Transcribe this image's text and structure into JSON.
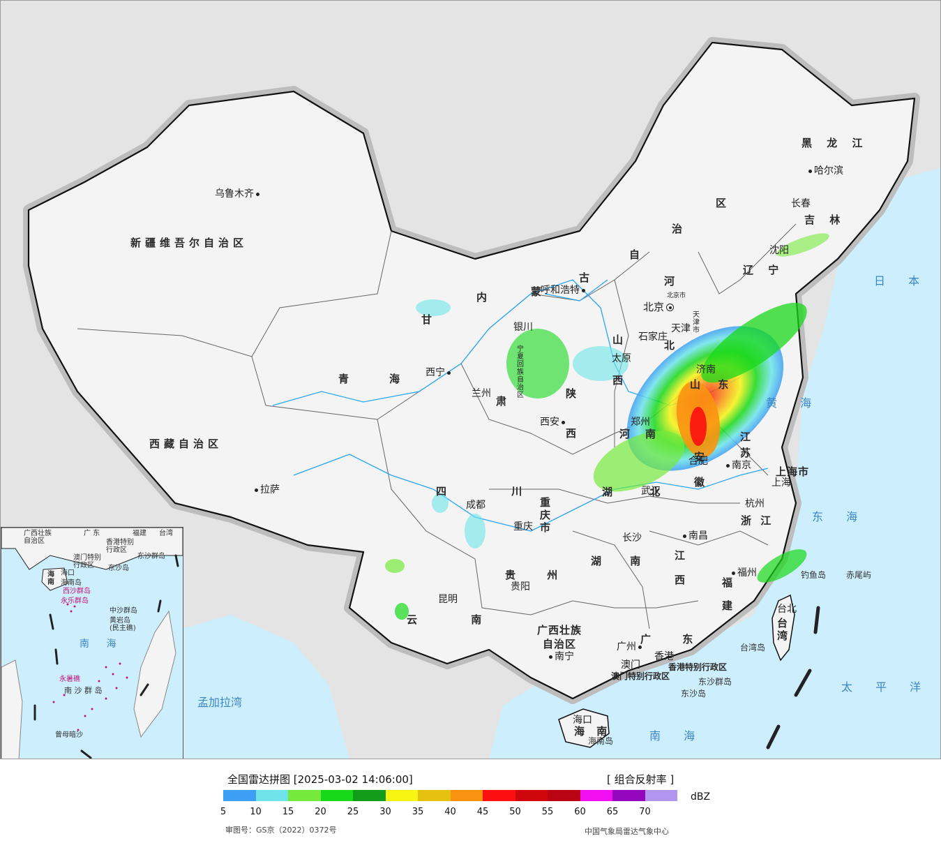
{
  "map": {
    "seas": {
      "sea_of_japan": "日 本 海",
      "yellow_sea": "黄 海",
      "east_sea": "东 海",
      "pacific": "太 平 洋",
      "south_sea": "南 海",
      "bay_of_bengal": "孟加拉湾"
    },
    "regions": {
      "xinjiang": "新疆维吾尔自治区",
      "tibet": "西藏自治区",
      "qinghai_1": "青",
      "qinghai_2": "海",
      "neimeng_nei": "内",
      "neimeng_meng": "蒙",
      "neimeng_gu": "古",
      "zizhi_zi": "自",
      "zizhi_zhi": "治",
      "zizhi_qu": "区",
      "heilongjiang": "黑 龙 江",
      "jilin": "吉 林",
      "liaoning": "辽 宁",
      "hebei_he": "河",
      "hebei_bei": "北",
      "shanxi_shan": "山",
      "shanxi_xi": "西",
      "shaanxi_shan": "陕",
      "shaanxi_xi": "西",
      "ningxia": "宁夏回族自治区",
      "gansu": "甘",
      "gansu_2": "肃",
      "shandong": "山 东",
      "henan_he": "河",
      "henan_nan": "南",
      "jiangsu": "江 苏",
      "anhui": "安 徽",
      "shanghai": "上海市",
      "zhejiang": "浙 江",
      "hubei": "湖 北",
      "sichuan": "四 川",
      "chongqing": "重庆市",
      "hunan": "湖 南",
      "jiangxi": "江 西",
      "fujian": "福 建",
      "guizhou": "贵 州",
      "yunnan": "云 南",
      "guangxi": "广西壮族 自治区",
      "guangdong": "广 东",
      "hainan": "海 南",
      "taiwan": "台湾",
      "hk_sar": "香港特别行政区",
      "macao_sar": "澳门特别行政区",
      "tianjin": "天津市",
      "beijing_city": "北京市"
    },
    "cities": {
      "urumqi": "乌鲁木齐",
      "lhasa": "拉萨",
      "xining": "西宁",
      "lanzhou": "兰州",
      "yinchuan": "银川",
      "hohhot": "呼和浩特",
      "beijing": "北京",
      "tianjin": "天津",
      "shijiazhuang": "石家庄",
      "taiyuan": "太原",
      "jinan": "济南",
      "zhengzhou": "郑州",
      "xian": "西安",
      "hefei": "合肥",
      "nanjing": "南京",
      "shanghai": "上海",
      "hangzhou": "杭州",
      "wuhan": "武汉",
      "chengdu": "成都",
      "chongqing": "重庆",
      "changsha": "长沙",
      "nanchang": "南昌",
      "fuzhou": "福州",
      "guiyang": "贵阳",
      "kunming": "昆明",
      "nanning": "南宁",
      "guangzhou": "广州",
      "hongkong": "香港",
      "macau": "澳门",
      "haikou": "海口",
      "taipei": "台北",
      "harbin": "哈尔滨",
      "changchun": "长春",
      "shenyang": "沈阳"
    },
    "islands": {
      "diaoyu": "钓鱼岛",
      "chiwei": "赤尾屿",
      "taiwan_island": "台湾岛",
      "dongsha_islands": "东沙群岛",
      "dongsha_island": "东沙岛",
      "hainan_island": "海南岛"
    }
  },
  "inset": {
    "labels": {
      "guangxi": "广西壮族 自治区",
      "guangdong": "广 东",
      "fujian": "福建",
      "taiwan": "台湾",
      "hk": "香港特别 行政区",
      "macao": "澳门特别 行政区",
      "dongsha": "东沙群岛",
      "dongsha_dao": "东沙岛",
      "hainan": "海 南",
      "haikou": "海口",
      "hainan_island": "海南岛",
      "xisha": "西沙群岛",
      "yongle": "永乐群岛",
      "zhongsha": "中沙群岛",
      "huangyan": "黄岩岛 (民主礁)",
      "south_sea": "南 海",
      "yongshu": "永暑礁",
      "nansha": "南 沙 群 岛",
      "zengmu": "曾母暗沙"
    }
  },
  "legend": {
    "title": "全国雷达拼图 [2025-03-02 14:06:00]",
    "product": "[ 组合反射率 ]",
    "unit": "dBZ",
    "ticks": [
      "5",
      "10",
      "15",
      "20",
      "25",
      "30",
      "35",
      "40",
      "45",
      "50",
      "55",
      "60",
      "65",
      "70"
    ],
    "colors": [
      "#3d9ff3",
      "#6ee4ea",
      "#76ea3c",
      "#18d81a",
      "#119d19",
      "#f6f413",
      "#e4c20f",
      "#fa9311",
      "#fb0f10",
      "#cf070d",
      "#ba0413",
      "#f10ef1",
      "#9407bd",
      "#b195ef"
    ]
  },
  "footer": {
    "approval": "审图号：GS京（2022）0372号",
    "producer": "中国气象局雷达气象中心"
  }
}
